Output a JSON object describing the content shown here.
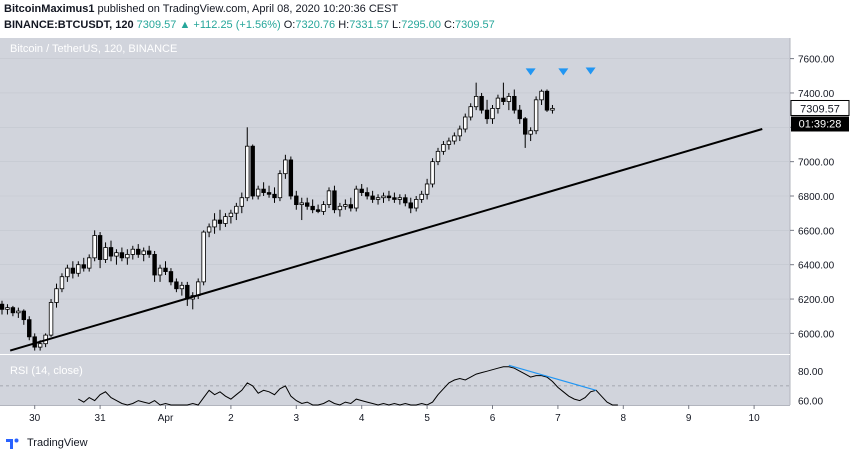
{
  "header": {
    "author": "BitcoinMaximus1",
    "published_text": "published on TradingView.com, April 08, 2020 10:20:36 CEST",
    "symbol": "BINANCE:BTCUSDT, 120",
    "last": "7309.57",
    "change": "+112.25 (+1.56%)",
    "o_label": "O:",
    "o_value": "7320.76",
    "h_label": "H:",
    "h_value": "7331.57",
    "l_label": "L:",
    "l_value": "7295.00",
    "c_label": "C:",
    "c_value": "7309.57",
    "colors": {
      "up": "#26a69a",
      "text": "#131722"
    }
  },
  "footer": {
    "brand": "TradingView",
    "logo_icon": "tradingview-logo-icon"
  },
  "chart_data": [
    {
      "type": "candlestick",
      "title": "Bitcoin / TetherUS, 120, BINANCE",
      "ylim": [
        5880,
        7720
      ],
      "y_ticks": [
        6000,
        6200,
        6400,
        6600,
        6800,
        7000,
        7200,
        7400,
        7600
      ],
      "y_tick_labels": [
        "6000.00",
        "6200.00",
        "6400.00",
        "6600.00",
        "6800.00",
        "7000.00",
        "7200.00",
        "7400.00",
        "7600.00"
      ],
      "x_ticks": [
        {
          "label": "30",
          "x": 6
        },
        {
          "label": "31",
          "x": 18
        },
        {
          "label": "Apr",
          "x": 30
        },
        {
          "label": "2",
          "x": 42
        },
        {
          "label": "3",
          "x": 54
        },
        {
          "label": "4",
          "x": 66
        },
        {
          "label": "5",
          "x": 78
        },
        {
          "label": "6",
          "x": 90
        },
        {
          "label": "7",
          "x": 102
        },
        {
          "label": "8",
          "x": 114
        },
        {
          "label": "9",
          "x": 126
        },
        {
          "label": "10",
          "x": 138
        }
      ],
      "candles": [
        [
          6170,
          6190,
          6110,
          6140
        ],
        [
          6140,
          6170,
          6110,
          6150
        ],
        [
          6150,
          6160,
          6100,
          6120
        ],
        [
          6120,
          6150,
          6090,
          6130
        ],
        [
          6130,
          6140,
          6050,
          6080
        ],
        [
          6080,
          6100,
          5960,
          5980
        ],
        [
          5980,
          6000,
          5900,
          5920
        ],
        [
          5920,
          5960,
          5900,
          5940
        ],
        [
          5940,
          6000,
          5920,
          5990
        ],
        [
          5990,
          6200,
          5980,
          6180
        ],
        [
          6180,
          6290,
          6150,
          6260
        ],
        [
          6260,
          6350,
          6240,
          6330
        ],
        [
          6330,
          6400,
          6300,
          6380
        ],
        [
          6380,
          6420,
          6320,
          6350
        ],
        [
          6350,
          6420,
          6330,
          6400
        ],
        [
          6400,
          6440,
          6360,
          6380
        ],
        [
          6380,
          6460,
          6360,
          6440
        ],
        [
          6440,
          6600,
          6420,
          6570
        ],
        [
          6570,
          6590,
          6380,
          6430
        ],
        [
          6430,
          6530,
          6410,
          6500
        ],
        [
          6500,
          6540,
          6420,
          6450
        ],
        [
          6450,
          6490,
          6400,
          6470
        ],
        [
          6470,
          6500,
          6420,
          6440
        ],
        [
          6440,
          6490,
          6400,
          6460
        ],
        [
          6460,
          6510,
          6430,
          6490
        ],
        [
          6490,
          6520,
          6440,
          6460
        ],
        [
          6460,
          6500,
          6420,
          6480
        ],
        [
          6480,
          6510,
          6440,
          6460
        ],
        [
          6460,
          6480,
          6300,
          6340
        ],
        [
          6340,
          6400,
          6300,
          6380
        ],
        [
          6380,
          6420,
          6340,
          6360
        ],
        [
          6360,
          6380,
          6280,
          6300
        ],
        [
          6300,
          6320,
          6240,
          6260
        ],
        [
          6260,
          6300,
          6220,
          6280
        ],
        [
          6280,
          6300,
          6160,
          6200
        ],
        [
          6200,
          6240,
          6140,
          6220
        ],
        [
          6220,
          6320,
          6200,
          6300
        ],
        [
          6300,
          6600,
          6280,
          6590
        ],
        [
          6590,
          6640,
          6560,
          6620
        ],
        [
          6620,
          6700,
          6580,
          6660
        ],
        [
          6660,
          6720,
          6600,
          6640
        ],
        [
          6640,
          6700,
          6620,
          6680
        ],
        [
          6680,
          6720,
          6640,
          6700
        ],
        [
          6700,
          6760,
          6660,
          6740
        ],
        [
          6740,
          6820,
          6700,
          6790
        ],
        [
          6790,
          7200,
          6770,
          7090
        ],
        [
          7090,
          7100,
          6780,
          6800
        ],
        [
          6800,
          6860,
          6780,
          6840
        ],
        [
          6840,
          6880,
          6800,
          6820
        ],
        [
          6820,
          6860,
          6790,
          6810
        ],
        [
          6810,
          6850,
          6760,
          6790
        ],
        [
          6790,
          6950,
          6770,
          6930
        ],
        [
          6930,
          7040,
          6900,
          7010
        ],
        [
          7010,
          7030,
          6780,
          6800
        ],
        [
          6800,
          6830,
          6720,
          6750
        ],
        [
          6750,
          6790,
          6660,
          6760
        ],
        [
          6760,
          6790,
          6720,
          6740
        ],
        [
          6740,
          6780,
          6700,
          6720
        ],
        [
          6720,
          6750,
          6700,
          6710
        ],
        [
          6710,
          6770,
          6690,
          6750
        ],
        [
          6750,
          6850,
          6730,
          6830
        ],
        [
          6830,
          6860,
          6700,
          6720
        ],
        [
          6720,
          6760,
          6680,
          6740
        ],
        [
          6740,
          6780,
          6720,
          6750
        ],
        [
          6750,
          6790,
          6710,
          6730
        ],
        [
          6730,
          6860,
          6710,
          6840
        ],
        [
          6840,
          6870,
          6800,
          6820
        ],
        [
          6820,
          6850,
          6780,
          6800
        ],
        [
          6800,
          6830,
          6760,
          6780
        ],
        [
          6780,
          6810,
          6750,
          6790
        ],
        [
          6790,
          6820,
          6760,
          6800
        ],
        [
          6800,
          6830,
          6770,
          6790
        ],
        [
          6790,
          6820,
          6760,
          6780
        ],
        [
          6780,
          6810,
          6750,
          6790
        ],
        [
          6790,
          6810,
          6740,
          6760
        ],
        [
          6760,
          6790,
          6700,
          6730
        ],
        [
          6730,
          6800,
          6710,
          6780
        ],
        [
          6780,
          6830,
          6760,
          6810
        ],
        [
          6810,
          6900,
          6780,
          6870
        ],
        [
          6870,
          7020,
          6850,
          7000
        ],
        [
          7000,
          7080,
          6980,
          7060
        ],
        [
          7060,
          7120,
          7040,
          7100
        ],
        [
          7100,
          7140,
          7070,
          7120
        ],
        [
          7120,
          7170,
          7100,
          7150
        ],
        [
          7150,
          7210,
          7120,
          7190
        ],
        [
          7190,
          7280,
          7170,
          7260
        ],
        [
          7260,
          7340,
          7240,
          7320
        ],
        [
          7320,
          7460,
          7300,
          7380
        ],
        [
          7380,
          7400,
          7280,
          7300
        ],
        [
          7300,
          7360,
          7220,
          7250
        ],
        [
          7250,
          7330,
          7220,
          7310
        ],
        [
          7310,
          7390,
          7280,
          7370
        ],
        [
          7370,
          7460,
          7330,
          7350
        ],
        [
          7350,
          7400,
          7300,
          7380
        ],
        [
          7380,
          7420,
          7280,
          7300
        ],
        [
          7300,
          7330,
          7220,
          7250
        ],
        [
          7250,
          7260,
          7080,
          7160
        ],
        [
          7160,
          7200,
          7120,
          7180
        ],
        [
          7180,
          7380,
          7160,
          7360
        ],
        [
          7360,
          7420,
          7330,
          7410
        ],
        [
          7410,
          7420,
          7290,
          7300
        ],
        [
          7300,
          7330,
          7280,
          7310
        ]
      ],
      "trendline": [
        [
          1.5,
          5900
        ],
        [
          139.5,
          7190
        ]
      ],
      "markers": {
        "shape": "down-triangle",
        "color": "#2196f3",
        "items": [
          {
            "i": 97,
            "y": 7520
          },
          {
            "i": 103,
            "y": 7520
          },
          {
            "i": 108,
            "y": 7525
          }
        ]
      },
      "last_price_label": "7309.57",
      "countdown_label": "01:39:28",
      "colors": {
        "up_body": "#ffffff",
        "down_body": "#000000",
        "wick": "#000000",
        "plot_bg": "#d1d4dc",
        "trendline": "#000000"
      }
    },
    {
      "type": "line",
      "title": "RSI (14, close)",
      "y_ticks": [
        60,
        80
      ],
      "y_tick_labels": [
        "60.00",
        "80.00"
      ],
      "ylim": [
        57,
        91
      ],
      "bands": [
        70
      ],
      "values": [
        [
          14,
          61
        ],
        [
          15,
          59
        ],
        [
          16,
          62
        ],
        [
          17,
          60
        ],
        [
          18,
          64
        ],
        [
          19,
          66
        ],
        [
          20,
          62
        ],
        [
          21,
          60
        ],
        [
          22,
          58
        ],
        [
          23,
          57
        ],
        [
          24,
          58
        ],
        [
          25,
          60
        ],
        [
          26,
          59
        ],
        [
          27,
          58
        ],
        [
          28,
          60
        ],
        [
          29,
          57
        ],
        [
          30,
          58
        ],
        [
          31,
          56
        ],
        [
          32,
          57
        ],
        [
          33,
          55
        ],
        [
          34,
          56
        ],
        [
          35,
          58
        ],
        [
          36,
          57
        ],
        [
          37,
          62
        ],
        [
          38,
          67
        ],
        [
          39,
          64
        ],
        [
          40,
          66
        ],
        [
          41,
          63
        ],
        [
          42,
          61
        ],
        [
          43,
          64
        ],
        [
          44,
          67
        ],
        [
          45,
          72
        ],
        [
          46,
          70
        ],
        [
          47,
          65
        ],
        [
          48,
          67
        ],
        [
          49,
          66
        ],
        [
          50,
          64
        ],
        [
          51,
          68
        ],
        [
          52,
          70
        ],
        [
          53,
          63
        ],
        [
          54,
          60
        ],
        [
          55,
          58
        ],
        [
          56,
          59
        ],
        [
          57,
          57
        ],
        [
          58,
          56
        ],
        [
          59,
          58
        ],
        [
          60,
          60
        ],
        [
          61,
          58
        ],
        [
          62,
          57
        ],
        [
          63,
          59
        ],
        [
          64,
          58
        ],
        [
          65,
          61
        ],
        [
          66,
          60
        ],
        [
          67,
          59
        ],
        [
          68,
          58
        ],
        [
          69,
          57
        ],
        [
          70,
          58
        ],
        [
          71,
          57
        ],
        [
          72,
          58
        ],
        [
          73,
          57
        ],
        [
          74,
          58
        ],
        [
          75,
          56
        ],
        [
          76,
          57
        ],
        [
          77,
          58
        ],
        [
          78,
          57
        ],
        [
          79,
          59
        ],
        [
          80,
          64
        ],
        [
          81,
          68
        ],
        [
          82,
          72
        ],
        [
          83,
          74
        ],
        [
          84,
          75
        ],
        [
          85,
          74
        ],
        [
          86,
          76
        ],
        [
          87,
          78
        ],
        [
          88,
          79
        ],
        [
          89,
          80
        ],
        [
          90,
          81
        ],
        [
          91,
          82
        ],
        [
          92,
          83
        ],
        [
          93,
          83
        ],
        [
          94,
          82
        ],
        [
          95,
          80
        ],
        [
          96,
          78
        ],
        [
          97,
          76
        ],
        [
          98,
          77
        ],
        [
          99,
          77
        ],
        [
          100,
          76
        ],
        [
          101,
          73
        ],
        [
          102,
          69
        ],
        [
          103,
          66
        ],
        [
          104,
          63
        ],
        [
          105,
          61
        ],
        [
          106,
          60
        ],
        [
          107,
          62
        ],
        [
          108,
          66
        ],
        [
          109,
          67
        ],
        [
          110,
          63
        ],
        [
          111,
          59
        ],
        [
          112,
          57
        ],
        [
          113,
          56
        ]
      ],
      "divergence_line": [
        [
          93,
          84
        ],
        [
          109,
          67
        ]
      ],
      "colors": {
        "line": "#000000",
        "divergence": "#2196f3",
        "band": "#9598a1"
      }
    }
  ]
}
